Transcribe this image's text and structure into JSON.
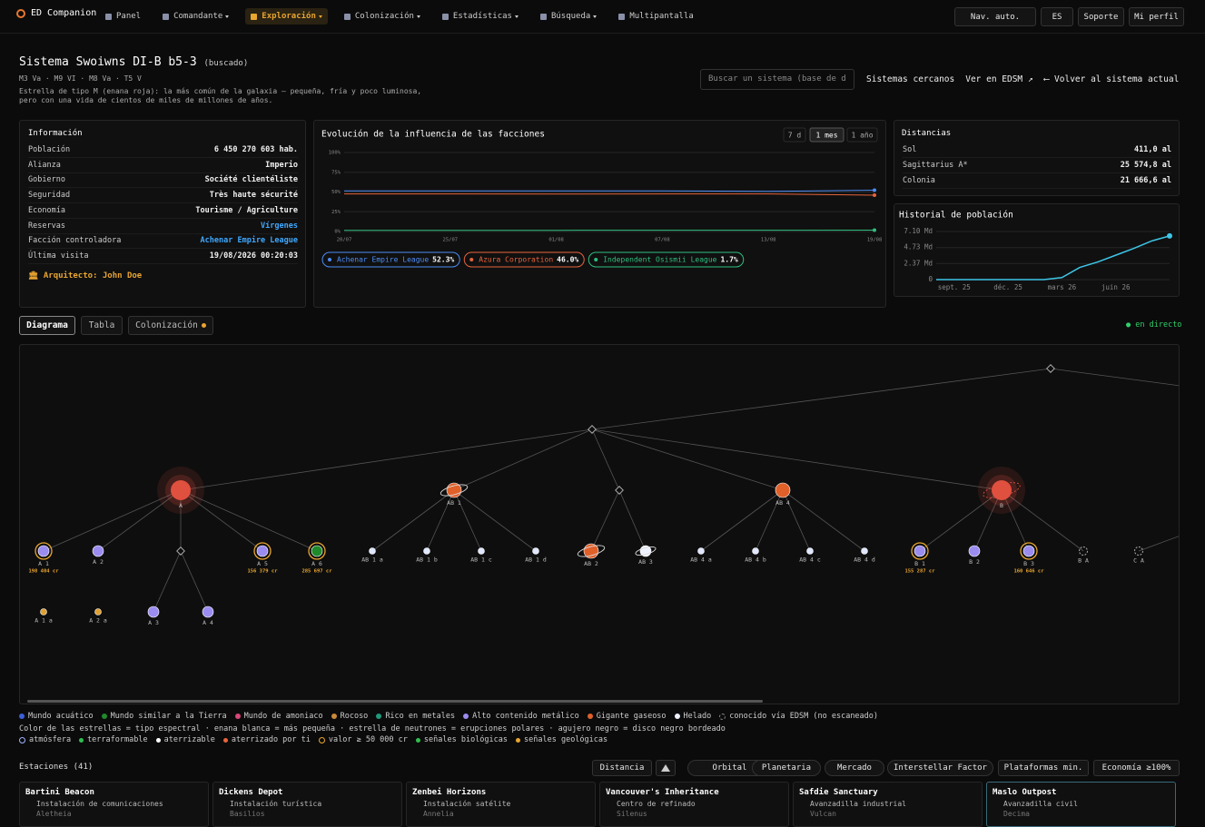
{
  "nav": {
    "brand": "ED Companion",
    "items": [
      "Panel",
      "Comandante",
      "Exploración",
      "Colonización",
      "Estadísticas",
      "Búsqueda",
      "Multipantalla"
    ],
    "active": 2,
    "right": [
      "Nav. auto.",
      "ES",
      "Soporte",
      "Mi perfil"
    ]
  },
  "header": {
    "title": "Sistema Swoiwns DI-B b5-3",
    "tag": "(buscado)",
    "stars": "M3 Va · M9 VI · M8 Va · T5 V",
    "description": [
      "Estrella de tipo M (enana roja): la más común de la galaxia — pequeña, fría y poco luminosa,",
      "pero con una vida de cientos de miles de millones de años."
    ],
    "search_placeholder": "Buscar un sistema (base de d",
    "links": [
      "Sistemas cercanos",
      "Ver en EDSM ↗",
      "⟵ Volver al sistema actual"
    ]
  },
  "info": {
    "title": "Información",
    "rows": [
      [
        "Población",
        "6 450 270 603 hab."
      ],
      [
        "Alianza",
        "Imperio"
      ],
      [
        "Gobierno",
        "Société clientéliste"
      ],
      [
        "Seguridad",
        "Très haute sécurité"
      ],
      [
        "Economía",
        "Tourisme / Agriculture"
      ],
      [
        "Reservas",
        "Vírgenes"
      ],
      [
        "Facción controladora",
        "Achenar Empire League"
      ],
      [
        "Última visita",
        "19/08/2026 00:20:03"
      ]
    ],
    "architect": "Arquitecto: John Doe"
  },
  "distances": {
    "title": "Distancias",
    "rows": [
      [
        "Sol",
        "411,0 al"
      ],
      [
        "Sagittarius A*",
        "25 574,8 al"
      ],
      [
        "Colonia",
        "21 666,6 al"
      ]
    ]
  },
  "chart_data": [
    {
      "type": "line",
      "title": "Evolución de la influencia de las facciones",
      "ranges": [
        "7 d",
        "1 mes",
        "1 año"
      ],
      "active_range": 1,
      "categories": [
        "20/07",
        "25/07",
        "01/08",
        "07/08",
        "13/08",
        "19/08"
      ],
      "series": [
        {
          "name": "Achenar Empire League",
          "color": "#4d8cf5",
          "values": [
            51.5,
            51.5,
            51.5,
            51.4,
            50.8,
            52.3
          ],
          "legend_label": "52.3%"
        },
        {
          "name": "Azura Corporation",
          "color": "#e8643c",
          "values": [
            47.5,
            47.5,
            47.4,
            47.5,
            47.6,
            46.0
          ],
          "legend_label": "46.0%"
        },
        {
          "name": "Independent Osismii League",
          "color": "#2fbf7f",
          "values": [
            1.5,
            1.5,
            1.5,
            1.6,
            1.6,
            1.7
          ],
          "legend_label": "1.7%"
        }
      ],
      "ylim": [
        0,
        100
      ],
      "yticks": [
        {
          "value": 0,
          "label": "0%"
        },
        {
          "value": 25,
          "label": "25%"
        },
        {
          "value": 50,
          "label": "50%"
        },
        {
          "value": 75,
          "label": "75%"
        },
        {
          "value": 100,
          "label": "100%"
        }
      ],
      "grid": true
    },
    {
      "type": "line",
      "title": "Historial de población",
      "categories": [
        null,
        "sept. 25",
        null,
        null,
        "déc. 25",
        null,
        null,
        "mars 26",
        null,
        null,
        "juin 26",
        null,
        null,
        null
      ],
      "values": [
        0,
        0,
        0,
        0,
        0,
        0,
        0,
        0.3,
        1.8,
        2.6,
        3.6,
        4.6,
        5.7,
        6.45
      ],
      "color": "#3ec6e8",
      "ylim": [
        0,
        7.1
      ],
      "yticks": [
        0,
        {
          "value": 2.37,
          "label": "2.37 Md"
        },
        {
          "value": 4.73,
          "label": "4.73 Md"
        },
        {
          "value": 7.1,
          "label": "7.10 Md"
        }
      ],
      "grid": true
    }
  ],
  "tabs": {
    "items": [
      "Diagrama",
      "Tabla",
      "Colonización"
    ],
    "active": 0,
    "live": "en directo"
  },
  "diagram": {
    "nodes": [
      {
        "label": "A",
        "color": "#e0503f",
        "star": true
      },
      {
        "label": "A 1",
        "color": "#9b8cf0",
        "value": "198 404 cr"
      },
      {
        "label": "A 2",
        "color": "#9b8cf0"
      },
      {
        "label": "A 5",
        "color": "#9b8cf0",
        "value": "156 379 cr"
      },
      {
        "label": "A 6",
        "color": "#1f8a2a",
        "value": "285 697 cr"
      },
      {
        "label": "A 1 a",
        "color": "#e0a030"
      },
      {
        "label": "A 2 a",
        "color": "#e0a030"
      },
      {
        "label": "A 3",
        "color": "#9b8cf0"
      },
      {
        "label": "A 4",
        "color": "#9b8cf0"
      },
      {
        "label": "AB 1",
        "color": "#e0602a",
        "ringed": true
      },
      {
        "label": "AB 1 a",
        "color": "#dfe6ff"
      },
      {
        "label": "AB 1 b",
        "color": "#dfe6ff"
      },
      {
        "label": "AB 1 c",
        "color": "#dfe6ff"
      },
      {
        "label": "AB 1 d",
        "color": "#dfe6ff"
      },
      {
        "label": "AB 2",
        "color": "#e0602a",
        "ringed": true
      },
      {
        "label": "AB 3",
        "color": "#eef2ff",
        "ringed": true
      },
      {
        "label": "AB 4",
        "color": "#e0602a"
      },
      {
        "label": "AB 4 a",
        "color": "#dfe6ff"
      },
      {
        "label": "AB 4 b",
        "color": "#dfe6ff"
      },
      {
        "label": "AB 4 c",
        "color": "#dfe6ff"
      },
      {
        "label": "AB 4 d",
        "color": "#dfe6ff"
      },
      {
        "label": "B",
        "color": "#e0503f",
        "star": true,
        "ringed": true
      },
      {
        "label": "B 1",
        "color": "#9b8cf0",
        "value": "155 287 cr"
      },
      {
        "label": "B 2",
        "color": "#9b8cf0"
      },
      {
        "label": "B 3",
        "color": "#9b8cf0",
        "value": "160 646 cr"
      },
      {
        "label": "B A",
        "color": "#888888",
        "edsm": true
      },
      {
        "label": "C A",
        "color": "#888888",
        "edsm": true
      }
    ]
  },
  "legend": {
    "bodies": [
      {
        "name": "Mundo acuático",
        "color": "#3b5fd9"
      },
      {
        "name": "Mundo similar a la Tierra",
        "color": "#1f8a2a"
      },
      {
        "name": "Mundo de amoniaco",
        "color": "#d9467a"
      },
      {
        "name": "Rocoso",
        "color": "#c88a3a"
      },
      {
        "name": "Rico en metales",
        "color": "#1f9a7a"
      },
      {
        "name": "Alto contenido metálico",
        "color": "#9b8cf0"
      },
      {
        "name": "Gigante gaseoso",
        "color": "#e0602a"
      },
      {
        "name": "Helado",
        "color": "#eef2ff"
      },
      {
        "name": "conocido vía EDSM (no escaneado)",
        "color": "#888888"
      }
    ],
    "note": "Color de las estrellas = tipo espectral · enana blanca = más pequeña · estrella de neutrones = erupciones polares · agujero negro = disco negro bordeado",
    "markers": [
      {
        "name": "atmósfera",
        "color": "#9fb4ff"
      },
      {
        "name": "terraformable",
        "color": "#2fbf4f"
      },
      {
        "name": "aterrizable",
        "color": "#ffffff"
      },
      {
        "name": "aterrizado por ti",
        "color": "#e8643c"
      },
      {
        "name": "valor ≥ 50 000 cr",
        "color": "#e8a530"
      },
      {
        "name": "señales biológicas",
        "color": "#2fbf4f"
      },
      {
        "name": "señales geológicas",
        "color": "#e8a530"
      }
    ]
  },
  "stations": {
    "title": "Estaciones (41)",
    "filters": [
      "Distancia",
      "Orbital",
      "Planetaria",
      "Mercado",
      "Interstellar Factor",
      "Plataformas min.",
      "Economía ≥100%"
    ],
    "cards": [
      [
        "Bartini Beacon",
        "Instalación de comunicaciones",
        "Aletheia"
      ],
      [
        "Dickens Depot",
        "Instalación turística",
        "Basilios"
      ],
      [
        "Zenbei Horizons",
        "Instalación satélite",
        "Annelia"
      ],
      [
        "Vancouver's Inheritance",
        "Centro de refinado",
        "Silenus"
      ],
      [
        "Safdie Sanctuary",
        "Avanzadilla industrial",
        "Vulcan"
      ],
      [
        "Maslo Outpost",
        "Avanzadilla civil",
        "Decima"
      ]
    ]
  }
}
